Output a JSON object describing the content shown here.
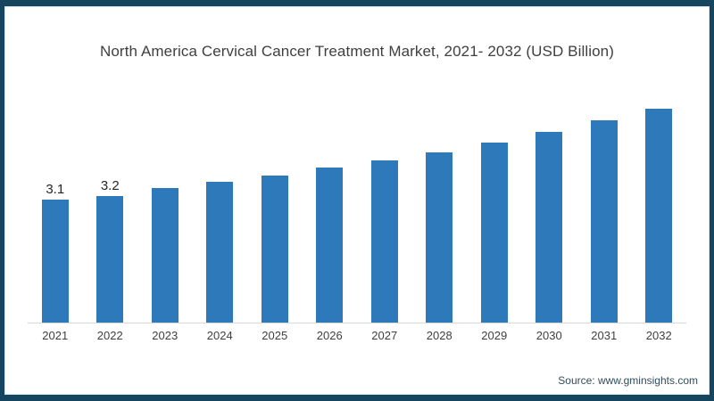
{
  "page": {
    "source_note": "Source: www.gminsights.com"
  },
  "colors": {
    "bar": "#2e79b9",
    "frame_border": "#15455f",
    "axis_line": "#d9d9d9",
    "title_text": "#3f3f3f",
    "source_text": "#2f4d5d",
    "background": "#ffffff"
  },
  "chart_data": {
    "type": "bar",
    "title": "North America Cervical Cancer Treatment Market, 2021- 2032 (USD Billion)",
    "xlabel": "",
    "ylabel": "",
    "categories": [
      "2021",
      "2022",
      "2023",
      "2024",
      "2025",
      "2026",
      "2027",
      "2028",
      "2029",
      "2030",
      "2031",
      "2032"
    ],
    "values": [
      3.1,
      3.2,
      3.4,
      3.55,
      3.7,
      3.9,
      4.1,
      4.3,
      4.55,
      4.8,
      5.1,
      5.4
    ],
    "data_labels": [
      "3.1",
      "3.2",
      "",
      "",
      "",
      "",
      "",
      "",
      "",
      "",
      "",
      ""
    ],
    "ylim": [
      0,
      6
    ],
    "grid": false,
    "legend": false,
    "bar_color": "#2e79b9"
  }
}
